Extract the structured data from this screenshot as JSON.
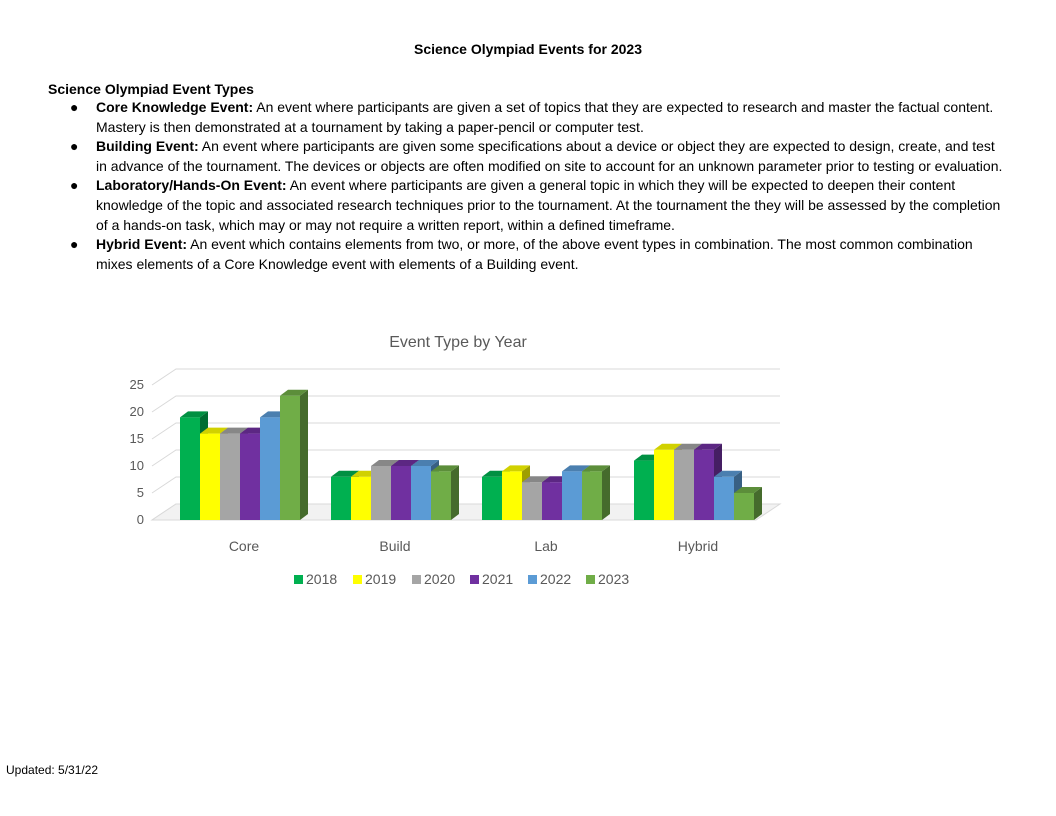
{
  "document": {
    "title": "Science Olympiad Events for 2023",
    "section_heading": "Science Olympiad Event Types",
    "event_types": [
      {
        "name": "Core Knowledge Event:",
        "description": " An event where participants are given a set of topics that they are expected to research and master the factual content. Mastery is then demonstrated at a tournament by taking a paper-pencil or computer test."
      },
      {
        "name": "Building Event:",
        "description": " An event where participants are given some specifications about a device or object they are expected to design, create, and test in advance of the tournament. The devices or objects are often modified on site to account for an unknown parameter prior to testing or evaluation."
      },
      {
        "name": "Laboratory/Hands-On Event:",
        "description": " An event where participants are given a general topic in which they will be expected to deepen their content knowledge of the topic and associated research techniques prior to the tournament. At the tournament the they will be assessed by the completion of a hands-on task, which may or may not require a written report, within a defined timeframe."
      },
      {
        "name": "Hybrid Event:",
        "description": " An event which contains elements from two, or more, of the above event types in combination. The most common combination mixes elements of a Core Knowledge event with elements of a Building event."
      }
    ],
    "footer": "Updated: 5/31/22"
  },
  "chart_data": {
    "type": "bar",
    "title": "Event Type by Year",
    "categories": [
      "Core",
      "Build",
      "Lab",
      "Hybrid"
    ],
    "yticks": [
      "0",
      "5",
      "10",
      "15",
      "20",
      "25"
    ],
    "ylim": [
      0,
      25
    ],
    "grid": true,
    "legend_position": "bottom",
    "series": [
      {
        "name": "2018",
        "color": "#00b050",
        "values": [
          19,
          8,
          8,
          11
        ]
      },
      {
        "name": "2019",
        "color": "#ffff00",
        "values": [
          16,
          8,
          9,
          13
        ]
      },
      {
        "name": "2020",
        "color": "#a5a5a5",
        "values": [
          16,
          10,
          7,
          13
        ]
      },
      {
        "name": "2021",
        "color": "#7030a0",
        "values": [
          16,
          10,
          7,
          13
        ]
      },
      {
        "name": "2022",
        "color": "#5b9bd5",
        "values": [
          19,
          10,
          9,
          8
        ]
      },
      {
        "name": "2023",
        "color": "#70ad47",
        "values": [
          23,
          9,
          9,
          5
        ]
      }
    ]
  }
}
